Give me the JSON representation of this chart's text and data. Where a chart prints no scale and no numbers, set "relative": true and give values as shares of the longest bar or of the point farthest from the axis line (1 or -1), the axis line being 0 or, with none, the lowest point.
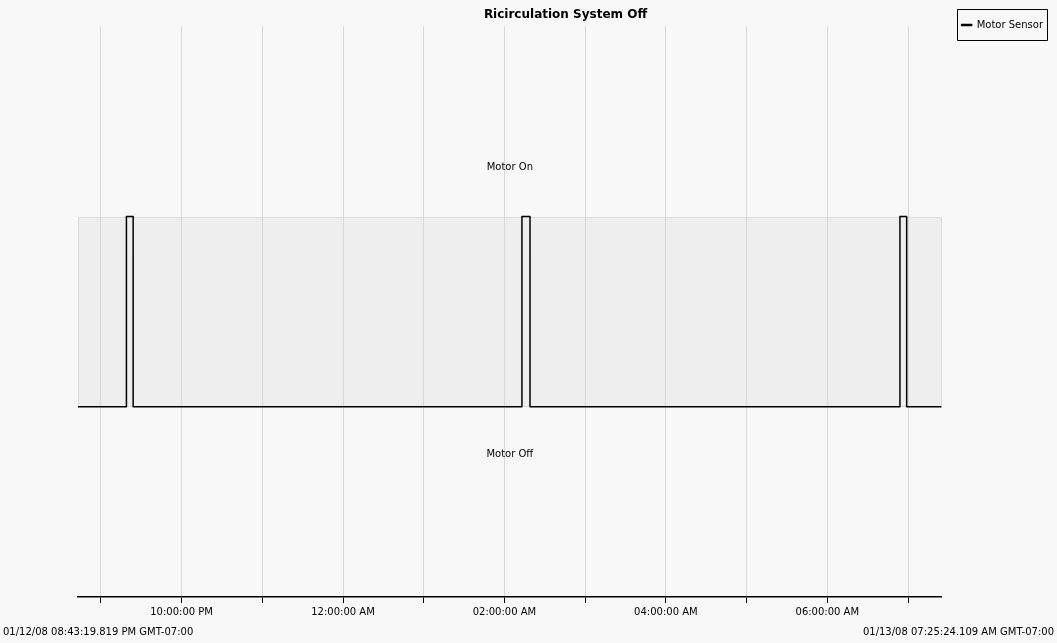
{
  "chart_data": {
    "type": "step",
    "title": "Ricirculation System Off",
    "relative": true,
    "x": [
      "--01-12T20:43",
      "--01-12T21:19",
      "--01-12T21:24",
      "--01-13T02:13",
      "--01-13T02:19",
      "--01-13T06:54",
      "--01-13T06:59",
      "--01-13T07:25"
    ],
    "series": [
      {
        "name": "Motor Sensor",
        "color": "#000000",
        "values": [
          0.5,
          1,
          0.5,
          1,
          0.5,
          1,
          0.5,
          0.5
        ]
      }
    ],
    "xlim": [
      "--01-12T20:43",
      "--01-13T07:25"
    ],
    "xticks": [
      {
        "value": "--01-12T21:00",
        "label": null
      },
      {
        "value": "--01-12T22:00",
        "label": "10:00:00 PM"
      },
      {
        "value": "--01-12T23:00",
        "label": null
      },
      {
        "value": "--01-13T00:00",
        "label": "12:00:00 AM"
      },
      {
        "value": "--01-13T01:00",
        "label": null
      },
      {
        "value": "--01-13T02:00",
        "label": "02:00:00 AM"
      },
      {
        "value": "--01-13T03:00",
        "label": null
      },
      {
        "value": "--01-13T04:00",
        "label": "04:00:00 AM"
      },
      {
        "value": "--01-13T05:00",
        "label": null
      },
      {
        "value": "--01-13T06:00",
        "label": "06:00:00 AM"
      },
      {
        "value": "--01-13T07:00",
        "label": null
      }
    ],
    "annotations": [
      "Motor On",
      "Motor Off",
      "01/12/08 08:43:19.819 PM GMT-07:00",
      "01/13/08 07:25:24.109 AM GMT-07:00"
    ],
    "grid": "x",
    "legend": "top right",
    "marker": "none",
    "line_style": "solid"
  }
}
